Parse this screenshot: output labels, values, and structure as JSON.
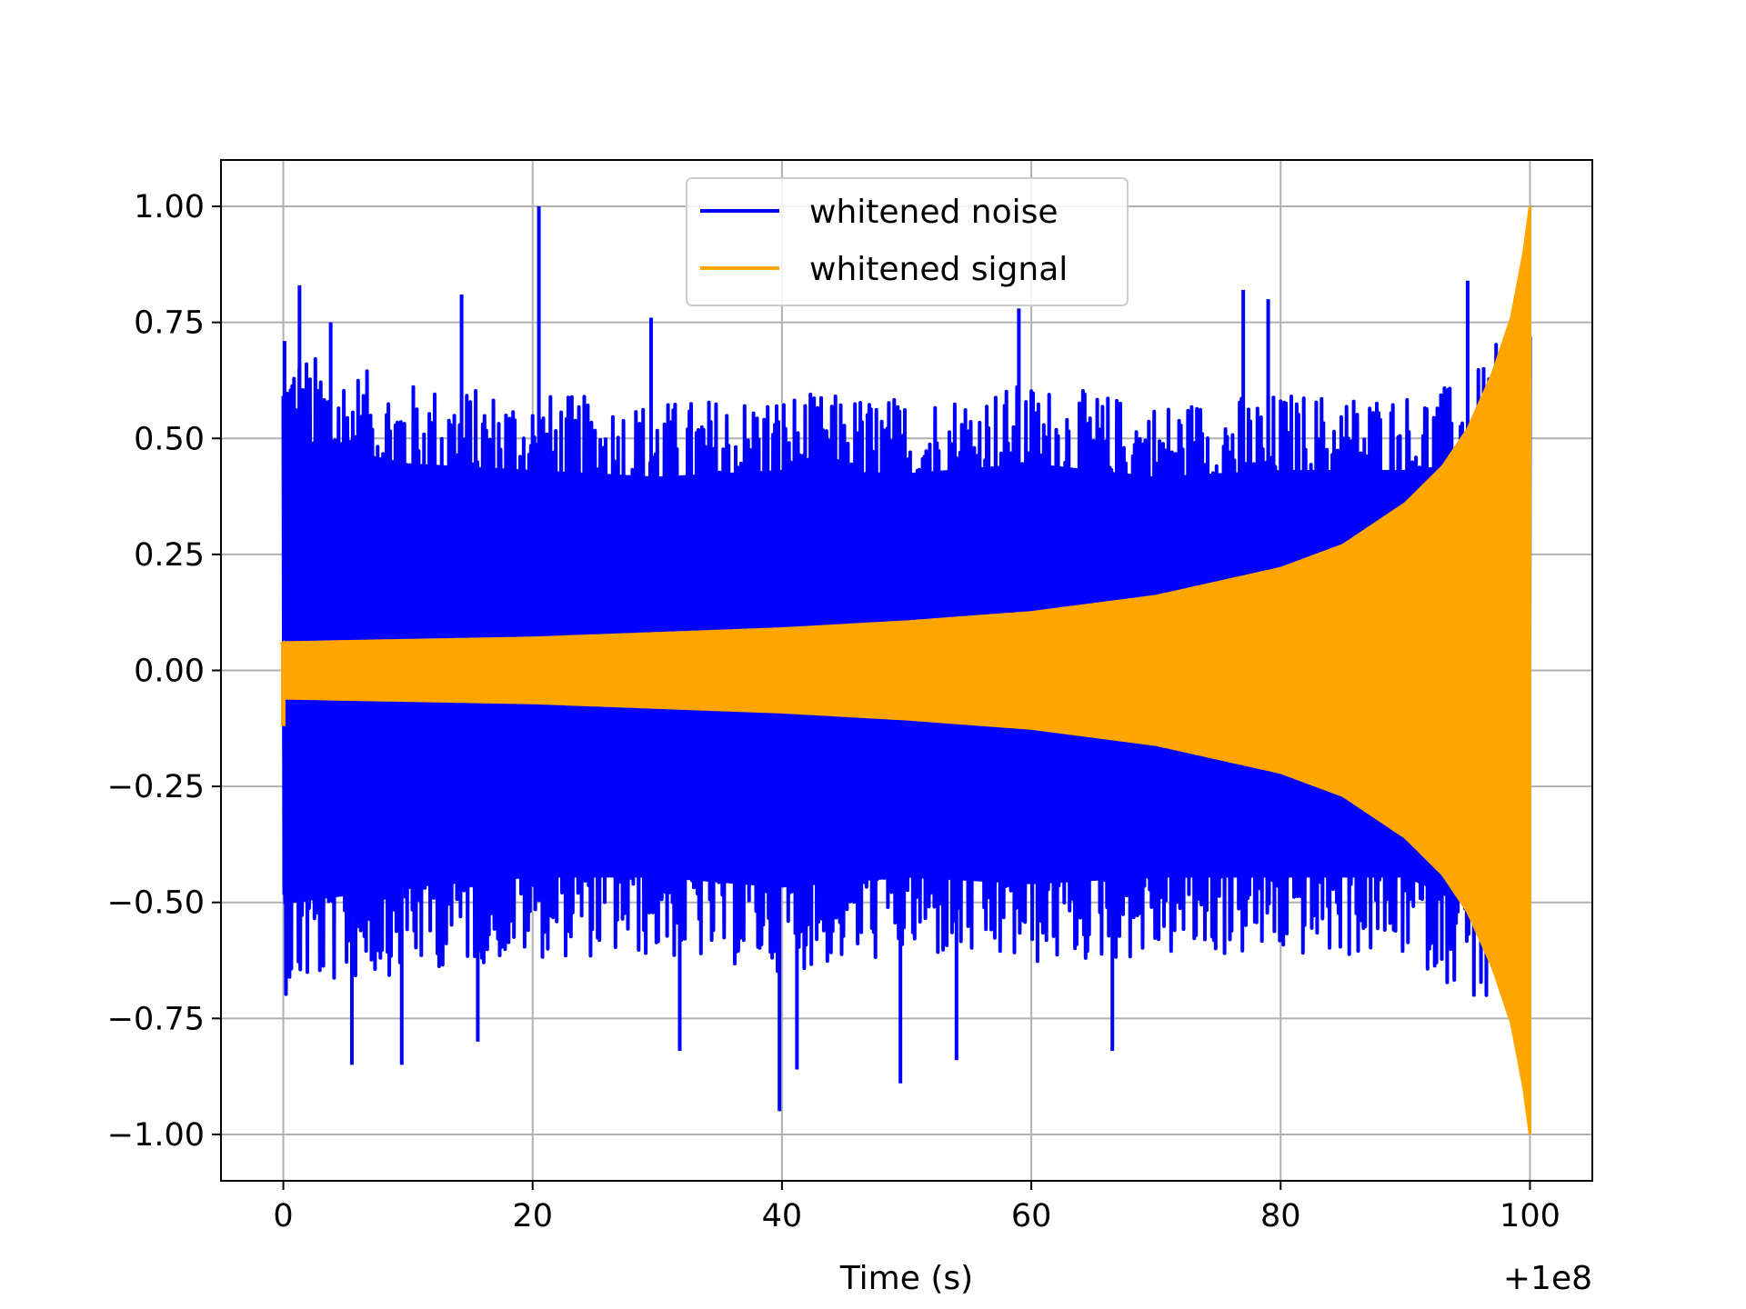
{
  "chart_data": {
    "type": "line",
    "xlabel": "Time (s)",
    "ylabel": "",
    "x_offset_label": "+1e8",
    "xlim": [
      -5,
      105
    ],
    "ylim": [
      -1.1,
      1.1
    ],
    "x_ticks": [
      0,
      20,
      40,
      60,
      80,
      100
    ],
    "x_tick_labels": [
      "0",
      "20",
      "40",
      "60",
      "80",
      "100"
    ],
    "y_ticks": [
      1.0,
      0.75,
      0.5,
      0.25,
      0.0,
      -0.25,
      -0.5,
      -0.75,
      -1.0
    ],
    "y_tick_labels": [
      "1.00",
      "0.75",
      "0.50",
      "0.25",
      "0.00",
      "−0.25",
      "−0.50",
      "−0.75",
      "−1.00"
    ],
    "grid": true,
    "legend_position": "upper center",
    "series": [
      {
        "name": "whitened noise",
        "color": "#0000ff",
        "description_values": {
          "x_range": [
            0,
            100
          ],
          "typical_peak_abs": 0.55,
          "max": 1.0,
          "min": -0.95
        },
        "envelope_x": [
          0,
          10,
          20,
          30,
          40,
          50,
          60,
          70,
          80,
          90,
          95,
          100
        ],
        "envelope_upper": [
          0.7,
          0.62,
          0.6,
          0.58,
          0.6,
          0.59,
          0.62,
          0.58,
          0.6,
          0.6,
          0.62,
          0.8
        ],
        "envelope_lower": [
          -0.7,
          -0.65,
          -0.62,
          -0.62,
          -0.65,
          -0.62,
          -0.64,
          -0.62,
          -0.62,
          -0.62,
          -0.7,
          -0.82
        ],
        "spikes": [
          {
            "x": 0.1,
            "y": 0.71
          },
          {
            "x": 1.3,
            "y": 0.83
          },
          {
            "x": 3.8,
            "y": 0.75
          },
          {
            "x": 5.5,
            "y": -0.85
          },
          {
            "x": 9.5,
            "y": -0.85
          },
          {
            "x": 14.3,
            "y": 0.81
          },
          {
            "x": 15.6,
            "y": -0.8
          },
          {
            "x": 20.5,
            "y": 1.0
          },
          {
            "x": 29.5,
            "y": 0.76
          },
          {
            "x": 31.8,
            "y": -0.82
          },
          {
            "x": 39.8,
            "y": -0.95
          },
          {
            "x": 41.2,
            "y": -0.86
          },
          {
            "x": 49.5,
            "y": -0.89
          },
          {
            "x": 54.0,
            "y": -0.84
          },
          {
            "x": 59.0,
            "y": 0.78
          },
          {
            "x": 66.5,
            "y": -0.82
          },
          {
            "x": 77.0,
            "y": 0.82
          },
          {
            "x": 79.0,
            "y": 0.8
          },
          {
            "x": 95.0,
            "y": 0.84
          }
        ]
      },
      {
        "name": "whitened signal",
        "color": "#ffa500",
        "envelope_x": [
          0,
          10,
          20,
          30,
          40,
          50,
          60,
          70,
          80,
          85,
          90,
          93,
          95,
          97,
          98.5,
          99.5,
          100
        ],
        "envelope_amplitude": [
          0.06,
          0.065,
          0.07,
          0.08,
          0.09,
          0.105,
          0.125,
          0.16,
          0.22,
          0.27,
          0.36,
          0.44,
          0.52,
          0.64,
          0.76,
          0.9,
          1.0
        ]
      }
    ]
  }
}
